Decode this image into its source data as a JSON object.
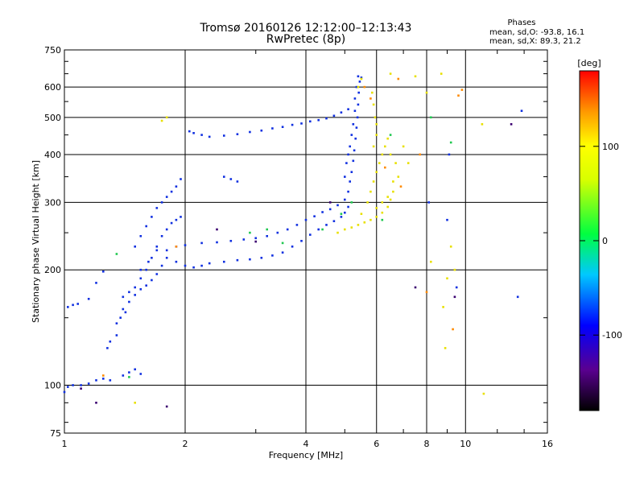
{
  "chart_data": {
    "type": "scatter",
    "title": "Tromsø 20160126 12:12:00–12:13:43",
    "subtitle": "RwPretec (8p)",
    "xlabel": "Frequency [MHz]",
    "ylabel": "Stationary phase Virtual Height [km]",
    "x_scale": "log",
    "y_scale": "log",
    "xlim": [
      1,
      16
    ],
    "ylim": [
      75,
      750
    ],
    "x_ticks": [
      1,
      2,
      4,
      6,
      8,
      10,
      16
    ],
    "x_tick_labels": [
      "1",
      "2",
      "4",
      "6",
      "8",
      "10",
      "16"
    ],
    "y_ticks": [
      75,
      100,
      200,
      300,
      400,
      500,
      600,
      750
    ],
    "y_tick_labels": [
      "75",
      "100",
      "200",
      "300",
      "400",
      "500",
      "600",
      "750"
    ],
    "grid": true,
    "phase_stats": {
      "title": "Phases",
      "line_o": "mean, sd,O: -93.8, 16.1",
      "line_x": "mean, sd,X:  89.3, 21.2"
    },
    "colorbar": {
      "label": "[deg]",
      "range": [
        -180,
        180
      ],
      "ticks": [
        100,
        0,
        -100
      ],
      "tick_labels": [
        "100",
        "0",
        "-100"
      ]
    },
    "series": [
      {
        "color_phase": -100,
        "points": [
          [
            1.0,
            96
          ],
          [
            1.02,
            99
          ],
          [
            1.05,
            100
          ],
          [
            1.1,
            100
          ],
          [
            1.15,
            101
          ],
          [
            1.2,
            103
          ],
          [
            1.25,
            104
          ],
          [
            1.3,
            103
          ],
          [
            1.4,
            106
          ],
          [
            1.45,
            108
          ],
          [
            1.5,
            110
          ],
          [
            1.55,
            107
          ],
          [
            1.02,
            160
          ],
          [
            1.05,
            162
          ],
          [
            1.08,
            163
          ],
          [
            1.15,
            168
          ],
          [
            1.2,
            185
          ],
          [
            1.25,
            198
          ],
          [
            1.35,
            145
          ],
          [
            1.38,
            150
          ],
          [
            1.4,
            158
          ],
          [
            1.45,
            165
          ],
          [
            1.5,
            172
          ],
          [
            1.55,
            178
          ],
          [
            1.6,
            182
          ],
          [
            1.65,
            188
          ],
          [
            1.7,
            195
          ],
          [
            1.75,
            205
          ],
          [
            1.4,
            170
          ],
          [
            1.45,
            175
          ],
          [
            1.5,
            180
          ],
          [
            1.55,
            190
          ],
          [
            1.6,
            200
          ],
          [
            1.65,
            215
          ],
          [
            1.7,
            230
          ],
          [
            1.75,
            245
          ],
          [
            1.8,
            255
          ],
          [
            1.85,
            265
          ],
          [
            1.9,
            270
          ],
          [
            1.95,
            275
          ],
          [
            1.5,
            230
          ],
          [
            1.55,
            245
          ],
          [
            1.6,
            260
          ],
          [
            1.65,
            275
          ],
          [
            1.7,
            290
          ],
          [
            1.75,
            300
          ],
          [
            1.8,
            310
          ],
          [
            1.85,
            320
          ],
          [
            1.9,
            330
          ],
          [
            1.95,
            345
          ],
          [
            1.55,
            200
          ],
          [
            1.62,
            210
          ],
          [
            1.7,
            225
          ],
          [
            1.8,
            215
          ],
          [
            1.9,
            210
          ],
          [
            2.0,
            205
          ],
          [
            2.1,
            203
          ],
          [
            2.2,
            205
          ],
          [
            2.3,
            208
          ],
          [
            2.5,
            210
          ],
          [
            2.7,
            212
          ],
          [
            2.9,
            213
          ],
          [
            3.1,
            215
          ],
          [
            3.3,
            218
          ],
          [
            3.5,
            222
          ],
          [
            3.7,
            230
          ],
          [
            3.9,
            238
          ],
          [
            4.1,
            247
          ],
          [
            4.3,
            255
          ],
          [
            4.5,
            262
          ],
          [
            4.7,
            268
          ],
          [
            4.9,
            275
          ],
          [
            5.0,
            282
          ],
          [
            5.1,
            292
          ],
          [
            1.8,
            225
          ],
          [
            1.9,
            230
          ],
          [
            2.0,
            232
          ],
          [
            2.2,
            235
          ],
          [
            2.4,
            236
          ],
          [
            2.6,
            238
          ],
          [
            2.8,
            240
          ],
          [
            3.0,
            242
          ],
          [
            3.2,
            245
          ],
          [
            3.4,
            250
          ],
          [
            3.6,
            255
          ],
          [
            3.8,
            262
          ],
          [
            4.0,
            270
          ],
          [
            4.2,
            276
          ],
          [
            4.4,
            283
          ],
          [
            4.6,
            288
          ],
          [
            4.8,
            295
          ],
          [
            5.0,
            305
          ],
          [
            5.1,
            320
          ],
          [
            5.15,
            340
          ],
          [
            5.2,
            360
          ],
          [
            5.25,
            385
          ],
          [
            5.28,
            410
          ],
          [
            5.32,
            440
          ],
          [
            5.35,
            470
          ],
          [
            5.38,
            500
          ],
          [
            5.4,
            540
          ],
          [
            5.42,
            580
          ],
          [
            5.45,
            620
          ],
          [
            5.5,
            635
          ],
          [
            5.0,
            350
          ],
          [
            5.05,
            380
          ],
          [
            5.1,
            400
          ],
          [
            5.15,
            420
          ],
          [
            5.2,
            450
          ],
          [
            5.25,
            480
          ],
          [
            5.3,
            520
          ],
          [
            5.3,
            560
          ],
          [
            5.35,
            600
          ],
          [
            5.4,
            640
          ],
          [
            2.05,
            460
          ],
          [
            2.1,
            455
          ],
          [
            2.2,
            450
          ],
          [
            2.3,
            445
          ],
          [
            2.5,
            448
          ],
          [
            2.7,
            452
          ],
          [
            2.9,
            458
          ],
          [
            3.1,
            462
          ],
          [
            3.3,
            468
          ],
          [
            3.5,
            472
          ],
          [
            3.7,
            478
          ],
          [
            3.9,
            482
          ],
          [
            4.1,
            488
          ],
          [
            4.3,
            492
          ],
          [
            4.5,
            497
          ],
          [
            4.7,
            505
          ],
          [
            4.9,
            515
          ],
          [
            5.1,
            525
          ],
          [
            1.3,
            130
          ],
          [
            1.35,
            135
          ],
          [
            1.28,
            125
          ],
          [
            1.42,
            155
          ],
          [
            2.5,
            350
          ],
          [
            2.6,
            345
          ],
          [
            2.7,
            340
          ],
          [
            8.1,
            300
          ],
          [
            9.1,
            400
          ],
          [
            9.0,
            270
          ],
          [
            9.5,
            180
          ],
          [
            13.5,
            170
          ],
          [
            13.8,
            520
          ]
        ]
      },
      {
        "color_phase": 100,
        "points": [
          [
            4.8,
            250
          ],
          [
            5.0,
            255
          ],
          [
            5.2,
            258
          ],
          [
            5.4,
            262
          ],
          [
            5.6,
            266
          ],
          [
            5.8,
            270
          ],
          [
            6.0,
            275
          ],
          [
            6.2,
            282
          ],
          [
            6.4,
            292
          ],
          [
            6.5,
            305
          ],
          [
            6.6,
            320
          ],
          [
            6.6,
            340
          ],
          [
            5.5,
            280
          ],
          [
            5.7,
            300
          ],
          [
            5.8,
            320
          ],
          [
            5.9,
            340
          ],
          [
            6.0,
            360
          ],
          [
            6.1,
            380
          ],
          [
            6.2,
            400
          ],
          [
            6.3,
            420
          ],
          [
            6.4,
            440
          ],
          [
            6.2,
            300
          ],
          [
            6.0,
            290
          ],
          [
            6.4,
            310
          ],
          [
            5.9,
            420
          ],
          [
            6.0,
            450
          ],
          [
            6.0,
            480
          ],
          [
            5.95,
            500
          ],
          [
            5.9,
            540
          ],
          [
            5.85,
            580
          ],
          [
            6.5,
            400
          ],
          [
            6.7,
            380
          ],
          [
            6.8,
            350
          ],
          [
            7.0,
            420
          ],
          [
            7.2,
            380
          ],
          [
            1.8,
            500
          ],
          [
            1.75,
            490
          ],
          [
            5.4,
            600
          ],
          [
            5.5,
            630
          ],
          [
            6.5,
            650
          ],
          [
            7.5,
            640
          ],
          [
            8.0,
            580
          ],
          [
            8.7,
            650
          ],
          [
            8.2,
            210
          ],
          [
            9.2,
            230
          ],
          [
            9.4,
            200
          ],
          [
            9.0,
            190
          ],
          [
            8.8,
            160
          ],
          [
            8.9,
            125
          ],
          [
            11.1,
            95
          ],
          [
            11.0,
            480
          ],
          [
            1.5,
            90
          ]
        ]
      },
      {
        "color_phase": 20,
        "points": [
          [
            2.9,
            250
          ],
          [
            3.2,
            255
          ],
          [
            3.5,
            235
          ],
          [
            4.4,
            255
          ],
          [
            4.9,
            280
          ],
          [
            5.2,
            300
          ],
          [
            6.2,
            270
          ],
          [
            6.5,
            450
          ],
          [
            1.35,
            220
          ],
          [
            1.45,
            105
          ],
          [
            8.2,
            500
          ],
          [
            9.2,
            430
          ]
        ]
      },
      {
        "color_phase": 150,
        "points": [
          [
            5.6,
            600
          ],
          [
            5.8,
            560
          ],
          [
            6.3,
            370
          ],
          [
            6.9,
            330
          ],
          [
            6.8,
            630
          ],
          [
            7.7,
            400
          ],
          [
            9.3,
            140
          ],
          [
            9.6,
            570
          ],
          [
            9.8,
            590
          ],
          [
            1.9,
            230
          ],
          [
            1.25,
            106
          ],
          [
            8.0,
            175
          ]
        ]
      },
      {
        "color_phase": -160,
        "points": [
          [
            7.5,
            180
          ],
          [
            9.4,
            170
          ],
          [
            1.1,
            98
          ],
          [
            1.2,
            90
          ],
          [
            1.8,
            88
          ],
          [
            2.4,
            255
          ],
          [
            3.0,
            237
          ],
          [
            4.6,
            300
          ],
          [
            13.0,
            480
          ]
        ]
      }
    ]
  }
}
